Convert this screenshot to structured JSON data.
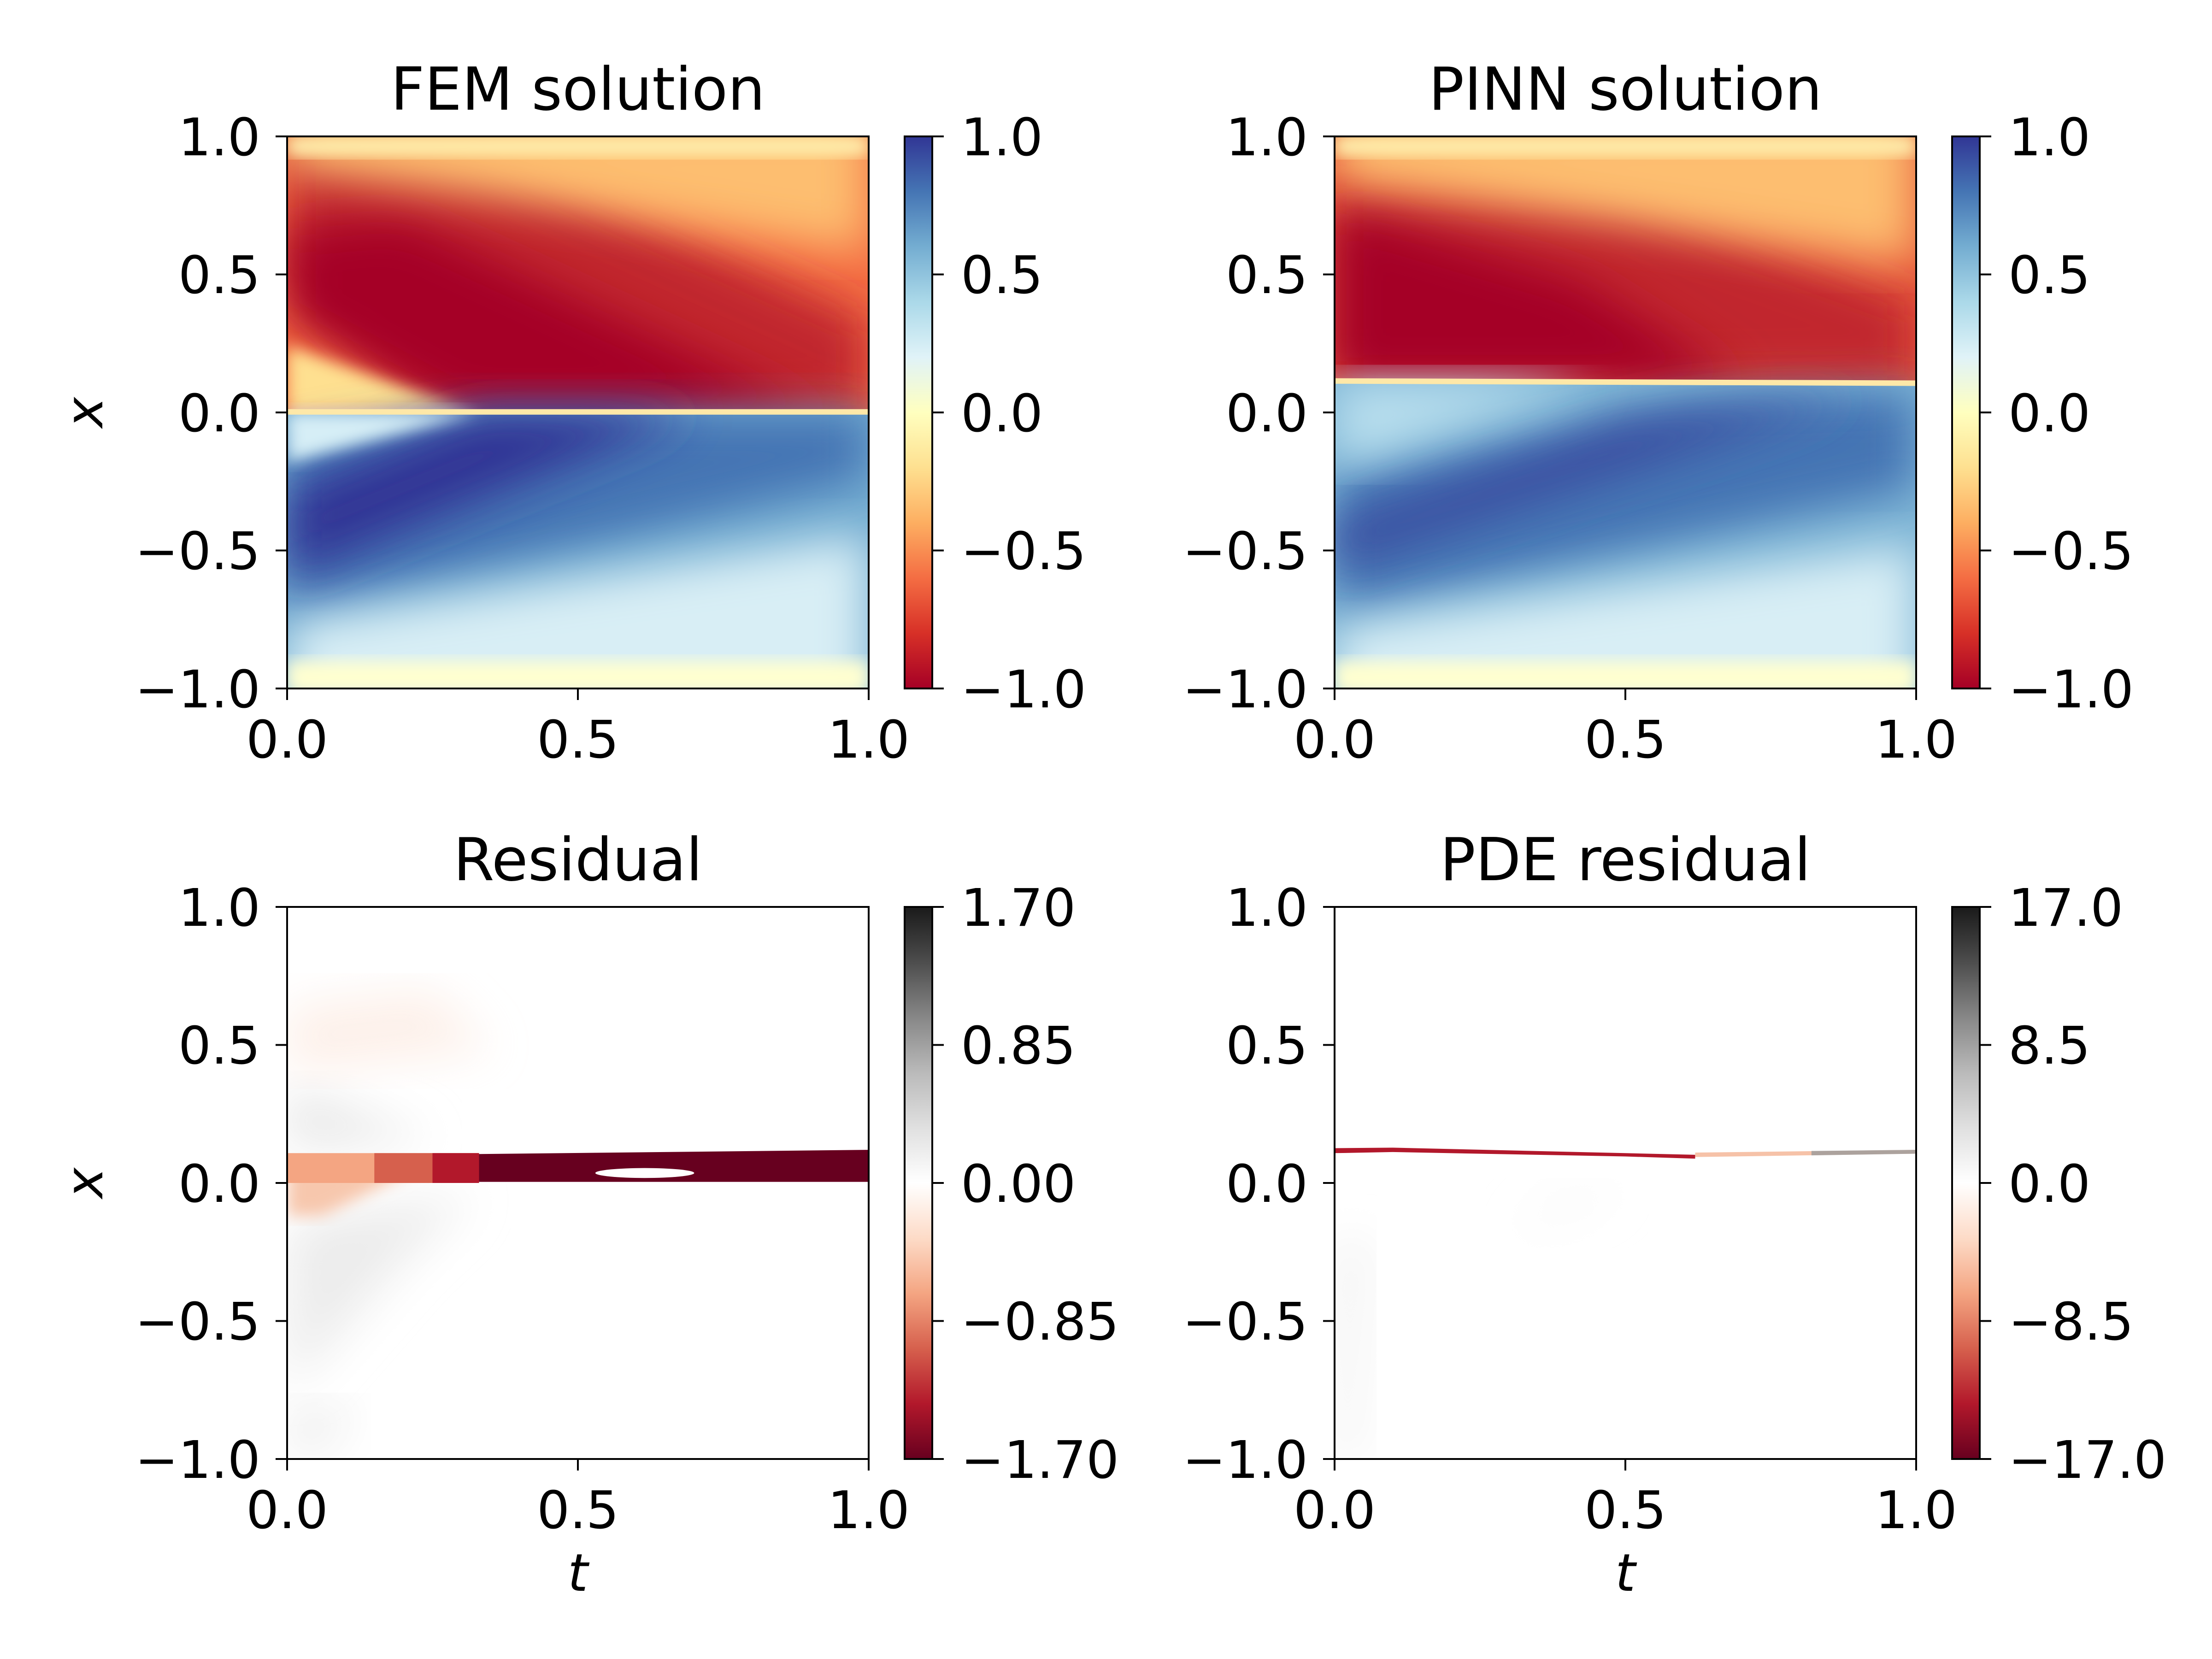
{
  "chart_data": [
    {
      "type": "heatmap",
      "title": "FEM solution",
      "xlabel": "",
      "ylabel": "x",
      "xlim": [
        0.0,
        1.0
      ],
      "ylim": [
        -1.0,
        1.0
      ],
      "xticks": [
        "0.0",
        "0.5",
        "1.0"
      ],
      "yticks": [
        "1.0",
        "0.5",
        "0.0",
        "−0.5",
        "−1.0"
      ],
      "colormap": "RdYlBu",
      "colorbar": {
        "range": [
          -1.0,
          1.0
        ],
        "ticks": [
          "1.0",
          "0.5",
          "0.0",
          "−0.5",
          "−1.0"
        ]
      },
      "shock": {
        "start_t": 0.0,
        "start_x": 0.0,
        "end_t": 1.0,
        "end_x": 0.0
      }
    },
    {
      "type": "heatmap",
      "title": "PINN solution",
      "xlabel": "",
      "ylabel": "",
      "xlim": [
        0.0,
        1.0
      ],
      "ylim": [
        -1.0,
        1.0
      ],
      "xticks": [
        "0.0",
        "0.5",
        "1.0"
      ],
      "yticks": [
        "1.0",
        "0.5",
        "0.0",
        "−0.5",
        "−1.0"
      ],
      "colormap": "RdYlBu",
      "colorbar": {
        "range": [
          -1.0,
          1.0
        ],
        "ticks": [
          "1.0",
          "0.5",
          "0.0",
          "−0.5",
          "−1.0"
        ]
      },
      "shock": {
        "start_t": 0.0,
        "start_x": 0.11,
        "end_t": 1.0,
        "end_x": 0.1
      }
    },
    {
      "type": "heatmap",
      "title": "Residual",
      "xlabel": "t",
      "ylabel": "x",
      "xlim": [
        0.0,
        1.0
      ],
      "ylim": [
        -1.0,
        1.0
      ],
      "xticks": [
        "0.0",
        "0.5",
        "1.0"
      ],
      "yticks": [
        "1.0",
        "0.5",
        "0.0",
        "−0.5",
        "−1.0"
      ],
      "colormap": "RdGy",
      "colorbar": {
        "range": [
          -1.7,
          1.7
        ],
        "ticks": [
          "1.70",
          "0.85",
          "0.00",
          "−0.85",
          "−1.70"
        ]
      },
      "band": {
        "x_low": 0.0,
        "x_high": 0.1,
        "min_value": -1.7
      }
    },
    {
      "type": "heatmap",
      "title": "PDE residual",
      "xlabel": "t",
      "ylabel": "",
      "xlim": [
        0.0,
        1.0
      ],
      "ylim": [
        -1.0,
        1.0
      ],
      "xticks": [
        "0.0",
        "0.5",
        "1.0"
      ],
      "yticks": [
        "1.0",
        "0.5",
        "0.0",
        "−0.5",
        "−1.0"
      ],
      "colormap": "RdGy",
      "colorbar": {
        "range": [
          -17.0,
          17.0
        ],
        "ticks": [
          "17.0",
          "8.5",
          "0.0",
          "−8.5",
          "−17.0"
        ]
      },
      "band": {
        "x_at_t0": 0.11,
        "x_at_t1": 0.1,
        "min_value": -17.0
      }
    }
  ]
}
